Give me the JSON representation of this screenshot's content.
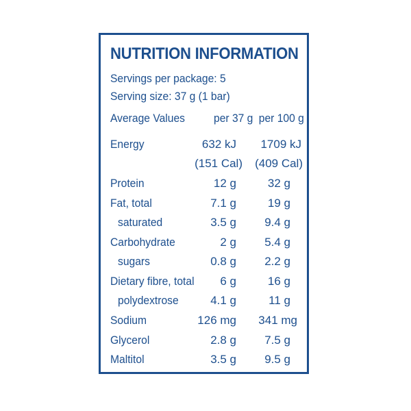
{
  "panel": {
    "title": "NUTRITION INFORMATION",
    "servings_per_package": "Servings per package: 5",
    "serving_size": "Serving size: 37 g (1 bar)",
    "headers": {
      "label": "Average Values",
      "per_serving": "per 37 g",
      "per_100g": "per 100 g"
    },
    "rows": [
      {
        "name": "Energy",
        "a": "632 kJ",
        "b": "1709 kJ"
      },
      {
        "name": "",
        "a": "(151 Cal)",
        "b": "(409 Cal)"
      },
      {
        "name": "Protein",
        "a": "12 g",
        "b": "32 g"
      },
      {
        "name": "Fat, total",
        "a": "7.1 g",
        "b": "19 g"
      },
      {
        "name": "saturated",
        "a": "3.5 g",
        "b": "9.4 g"
      },
      {
        "name": "Carbohydrate",
        "a": "2 g",
        "b": "5.4 g"
      },
      {
        "name": "sugars",
        "a": "0.8 g",
        "b": "2.2 g"
      },
      {
        "name": "Dietary fibre, total",
        "a": "6 g",
        "b": "16 g"
      },
      {
        "name": "polydextrose",
        "a": "4.1 g",
        "b": "11 g"
      },
      {
        "name": "Sodium",
        "a": "126 mg",
        "b": "341 mg"
      },
      {
        "name": "Glycerol",
        "a": "2.8 g",
        "b": "7.5 g"
      },
      {
        "name": "Maltitol",
        "a": "3.5 g",
        "b": "9.5 g"
      }
    ]
  }
}
